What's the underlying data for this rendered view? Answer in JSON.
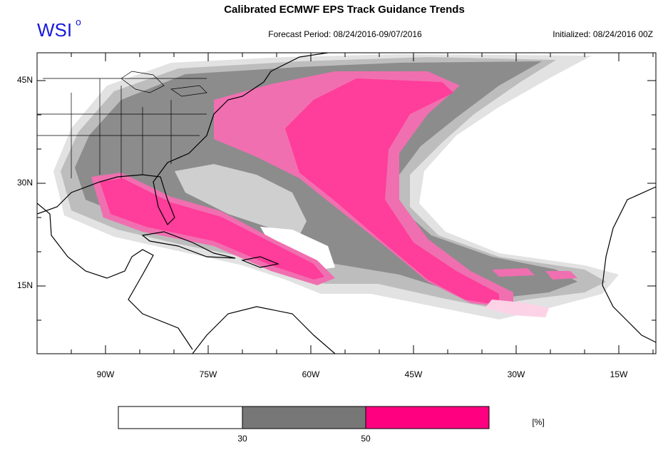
{
  "header": {
    "title": "Calibrated ECMWF EPS Track Guidance Trends",
    "logo": "WSI",
    "logo_mark": "o",
    "forecast_period": "Forecast Period: 08/24/2016-09/07/2016",
    "initialized": "Initialized: 08/24/2016 00Z"
  },
  "map": {
    "lat_labels": [
      "45N",
      "30N",
      "15N"
    ],
    "lon_labels": [
      "90W",
      "75W",
      "60W",
      "45W",
      "30W",
      "15W"
    ]
  },
  "legend": {
    "labels": [
      "30",
      "50"
    ],
    "unit": "[%]"
  }
}
